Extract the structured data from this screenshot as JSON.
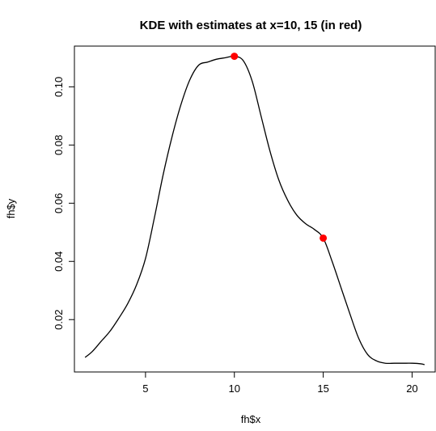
{
  "chart_data": {
    "type": "line",
    "title": "KDE with estimates at x=10, 15 (in red)",
    "xlabel": "fh$x",
    "ylabel": "fh$y",
    "xlim": [
      1.0,
      21.3
    ],
    "ylim": [
      0.002,
      0.114
    ],
    "xticks": [
      "5",
      "10",
      "15",
      "20"
    ],
    "yticks": [
      "0.02",
      "0.04",
      "0.06",
      "0.08",
      "0.10"
    ],
    "series": [
      {
        "x": [
          1.6,
          2.0,
          2.5,
          3.0,
          3.5,
          4.0,
          4.5,
          5.0,
          5.5,
          6.0,
          6.5,
          7.0,
          7.5,
          8.0,
          8.5,
          9.0,
          9.5,
          10.0,
          10.5,
          11.0,
          11.5,
          12.0,
          12.5,
          13.0,
          13.5,
          14.0,
          14.5,
          15.0,
          15.5,
          16.0,
          16.5,
          17.0,
          17.5,
          18.0,
          18.5,
          19.0,
          19.5,
          20.0,
          20.5,
          20.7
        ],
        "y": [
          0.007,
          0.009,
          0.0125,
          0.016,
          0.0205,
          0.0255,
          0.032,
          0.041,
          0.055,
          0.07,
          0.083,
          0.094,
          0.1025,
          0.1075,
          0.1085,
          0.1095,
          0.11,
          0.1105,
          0.109,
          0.102,
          0.09,
          0.078,
          0.068,
          0.061,
          0.056,
          0.053,
          0.051,
          0.048,
          0.04,
          0.031,
          0.022,
          0.0135,
          0.008,
          0.0058,
          0.005,
          0.005,
          0.005,
          0.005,
          0.0048,
          0.0045
        ]
      }
    ],
    "points": [
      {
        "x": 10,
        "y": 0.1105
      },
      {
        "x": 15,
        "y": 0.048
      }
    ],
    "line_color": "#000000",
    "point_color": "#ff0000",
    "grid": false,
    "legend": "none"
  }
}
